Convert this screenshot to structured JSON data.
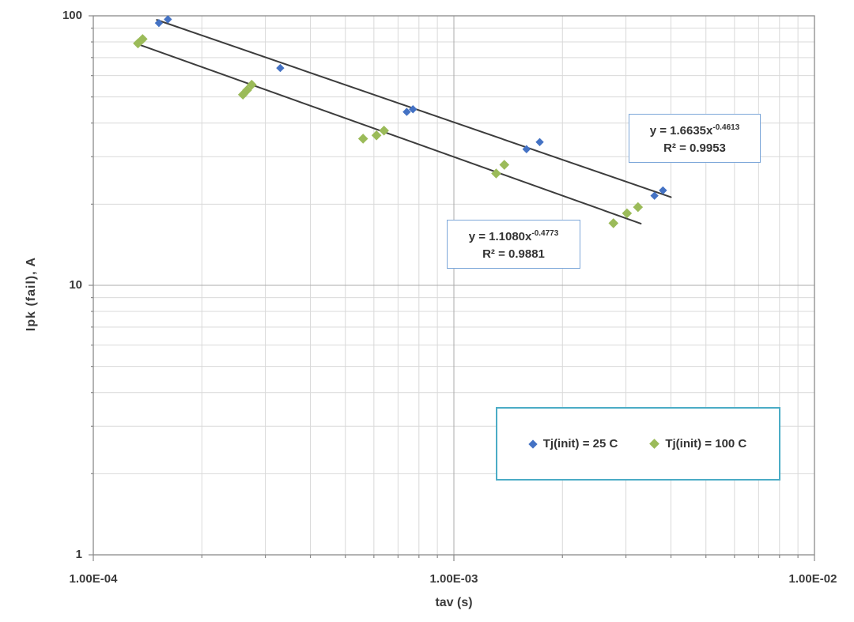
{
  "chart_data": {
    "type": "scatter",
    "title": "",
    "xlabel": "tav (s)",
    "ylabel": "Ipk (fail),  A",
    "x_scale": "log",
    "y_scale": "log",
    "xlim": [
      0.0001,
      0.01
    ],
    "ylim": [
      1,
      100
    ],
    "grid": {
      "minor": true,
      "major": true
    },
    "legend_position": "inside-bottom-right",
    "x_ticks": [
      {
        "value": 0.0001,
        "label": "1.00E-04"
      },
      {
        "value": 0.001,
        "label": "1.00E-03"
      },
      {
        "value": 0.01,
        "label": "1.00E-02"
      }
    ],
    "y_ticks": [
      {
        "value": 1,
        "label": "1"
      },
      {
        "value": 10,
        "label": "10"
      },
      {
        "value": 100,
        "label": "100"
      }
    ],
    "series": [
      {
        "name": "Tj(init) = 25 C",
        "marker": "diamond",
        "color": "#4472c4",
        "points": [
          [
            0.000152,
            94
          ],
          [
            0.000161,
            97
          ],
          [
            0.00033,
            64
          ],
          [
            0.00074,
            44
          ],
          [
            0.00077,
            45
          ],
          [
            0.00159,
            32
          ],
          [
            0.00173,
            34
          ],
          [
            0.0036,
            21.5
          ],
          [
            0.0038,
            22.5
          ]
        ],
        "trendline": {
          "type": "power",
          "a": 1.6635,
          "b": -0.4613,
          "r2": 0.9953,
          "x_range": [
            0.00015,
            0.004
          ],
          "color": "#3d3d3d"
        }
      },
      {
        "name": "Tj(init) = 100 C",
        "marker": "diamond",
        "color": "#9bbb59",
        "points": [
          [
            0.000133,
            79
          ],
          [
            0.000137,
            82
          ],
          [
            0.00026,
            51
          ],
          [
            0.000267,
            53
          ],
          [
            0.000275,
            55.5
          ],
          [
            0.00056,
            35
          ],
          [
            0.00061,
            36
          ],
          [
            0.00064,
            37.5
          ],
          [
            0.00131,
            26
          ],
          [
            0.00138,
            28
          ],
          [
            0.00277,
            17
          ],
          [
            0.00302,
            18.5
          ],
          [
            0.00324,
            19.5
          ]
        ],
        "trendline": {
          "type": "power",
          "a": 1.108,
          "b": -0.4773,
          "r2": 0.9881,
          "x_range": [
            0.000133,
            0.0033
          ],
          "color": "#3d3d3d"
        }
      }
    ],
    "annotations": [
      {
        "eq_base": "y = 1.6635x",
        "eq_exp": "-0.4613",
        "r2": "R² = 0.9953",
        "border_color": "#7da7d9"
      },
      {
        "eq_base": "y = 1.1080x",
        "eq_exp": "-0.4773",
        "r2": "R² = 0.9881",
        "border_color": "#7da7d9"
      }
    ],
    "colors": {
      "minor_grid": "#d9d9d9",
      "major_grid": "#ababab",
      "frame": "#8a8a8a",
      "legend_border": "#4bacc6",
      "text": "#3a3a3a"
    }
  }
}
